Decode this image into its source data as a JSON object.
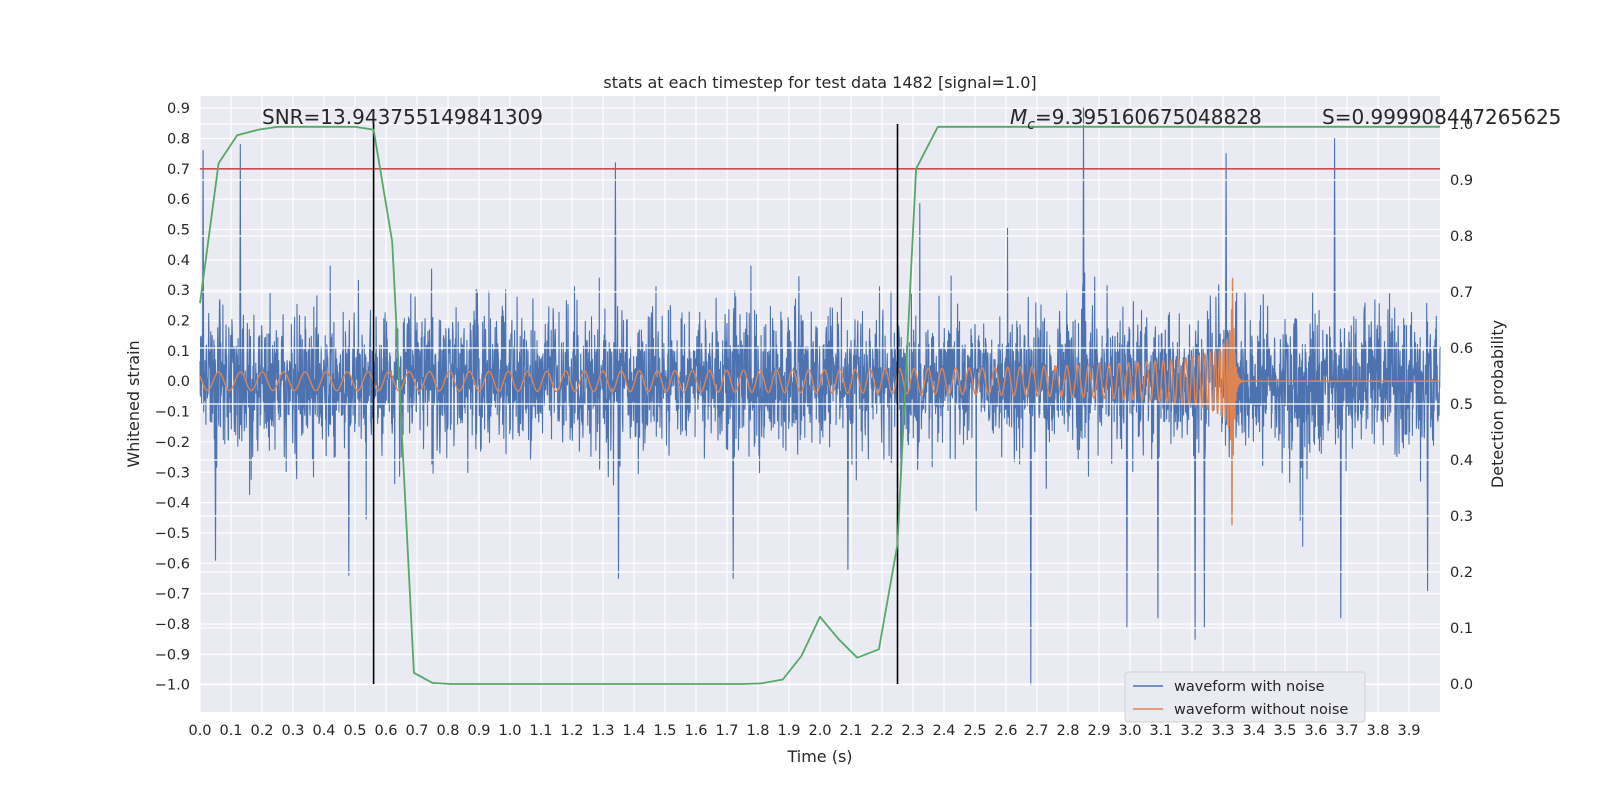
{
  "chart_data": {
    "type": "line",
    "title": "stats at each timestep for test data 1482 [signal=1.0]",
    "xlabel": "Time (s)",
    "ylabel": "Whitened strain",
    "y2label": "Detection probability",
    "xlim": [
      0.0,
      4.0
    ],
    "ylim": [
      -1.09,
      0.94
    ],
    "y2lim": [
      -0.05,
      1.05
    ],
    "x_ticks": [
      "0.0",
      "0.1",
      "0.2",
      "0.3",
      "0.4",
      "0.5",
      "0.6",
      "0.7",
      "0.8",
      "0.9",
      "1.0",
      "1.1",
      "1.2",
      "1.3",
      "1.4",
      "1.5",
      "1.6",
      "1.7",
      "1.8",
      "1.9",
      "2.0",
      "2.1",
      "2.2",
      "2.3",
      "2.4",
      "2.5",
      "2.6",
      "2.7",
      "2.8",
      "2.9",
      "3.0",
      "3.1",
      "3.2",
      "3.3",
      "3.4",
      "3.5",
      "3.6",
      "3.7",
      "3.8",
      "3.9"
    ],
    "y_ticks": [
      "0.9",
      "0.8",
      "0.7",
      "0.6",
      "0.5",
      "0.4",
      "0.3",
      "0.2",
      "0.1",
      "0.0",
      "−0.1",
      "−0.2",
      "−0.3",
      "−0.4",
      "−0.5",
      "−0.6",
      "−0.7",
      "−0.8",
      "−0.9",
      "−1.0"
    ],
    "y2_ticks": [
      "1.0",
      "0.9",
      "0.8",
      "0.7",
      "0.6",
      "0.5",
      "0.4",
      "0.3",
      "0.2",
      "0.1",
      "0.0"
    ],
    "grid": true,
    "legend_position": "lower-right",
    "threshold": {
      "y": 0.7,
      "color": "#c44e52"
    },
    "vertical_markers": [
      0.56,
      2.25
    ],
    "annotations": {
      "snr": "SNR=13.943755149841309",
      "mc_symbol": "M",
      "mc_sub": "c",
      "mc_value": "=9.395160675048828",
      "s": "S=0.999908447265625"
    },
    "series": [
      {
        "name": "waveform with noise",
        "color": "#4c72b0",
        "axis": "left",
        "description": "whitened noisy strain, dense band approx. ±0.5 with spikes up to 0.9 / down to −1.0",
        "band": {
          "x": [
            0.0,
            4.0
          ],
          "y": [
            -0.55,
            0.55
          ]
        },
        "spikes": [
          {
            "x": 0.01,
            "y": 0.76
          },
          {
            "x": 0.13,
            "y": 0.78
          },
          {
            "x": 0.05,
            "y": -0.59
          },
          {
            "x": 0.48,
            "y": -0.64
          },
          {
            "x": 1.34,
            "y": 0.72
          },
          {
            "x": 1.35,
            "y": -0.65
          },
          {
            "x": 1.72,
            "y": -0.65
          },
          {
            "x": 2.09,
            "y": -0.62
          },
          {
            "x": 2.68,
            "y": -1.0
          },
          {
            "x": 2.85,
            "y": 0.9
          },
          {
            "x": 2.99,
            "y": -0.81
          },
          {
            "x": 3.09,
            "y": -0.78
          },
          {
            "x": 3.21,
            "y": -0.85
          },
          {
            "x": 3.24,
            "y": -0.81
          },
          {
            "x": 3.31,
            "y": 0.75
          },
          {
            "x": 3.66,
            "y": 0.8
          },
          {
            "x": 3.68,
            "y": -0.78
          },
          {
            "x": 3.96,
            "y": -0.69
          }
        ]
      },
      {
        "name": "waveform without noise",
        "color": "#dd8452",
        "axis": "left",
        "description": "chirp signal, amplitude growing from ~0.03 to ~0.4, merger at ~3.33 s, then ringdown to 0",
        "amplitude": {
          "start": 0.03,
          "mid_2s": 0.055,
          "peak": 0.4
        },
        "merger_time": 3.33,
        "start_frequency_hz": 14
      },
      {
        "name": "detection probability",
        "color": "#55a868",
        "axis": "right",
        "x": [
          0.0,
          0.06,
          0.12,
          0.19,
          0.25,
          0.31,
          0.38,
          0.44,
          0.5,
          0.56,
          0.62,
          0.69,
          0.75,
          0.81,
          0.88,
          1.0,
          1.25,
          1.5,
          1.75,
          1.81,
          1.88,
          1.94,
          2.0,
          2.06,
          2.12,
          2.19,
          2.25,
          2.31,
          2.38,
          2.5,
          3.0,
          3.5,
          4.0
        ],
        "y": [
          0.68,
          0.93,
          0.98,
          0.99,
          0.995,
          0.995,
          0.995,
          0.995,
          0.995,
          0.99,
          0.79,
          0.02,
          0.002,
          0.0,
          0.0,
          0.0,
          0.0,
          0.0,
          0.0,
          0.001,
          0.008,
          0.05,
          0.12,
          0.08,
          0.047,
          0.062,
          0.25,
          0.92,
          0.995,
          0.995,
          0.995,
          0.995,
          0.995
        ]
      }
    ]
  }
}
